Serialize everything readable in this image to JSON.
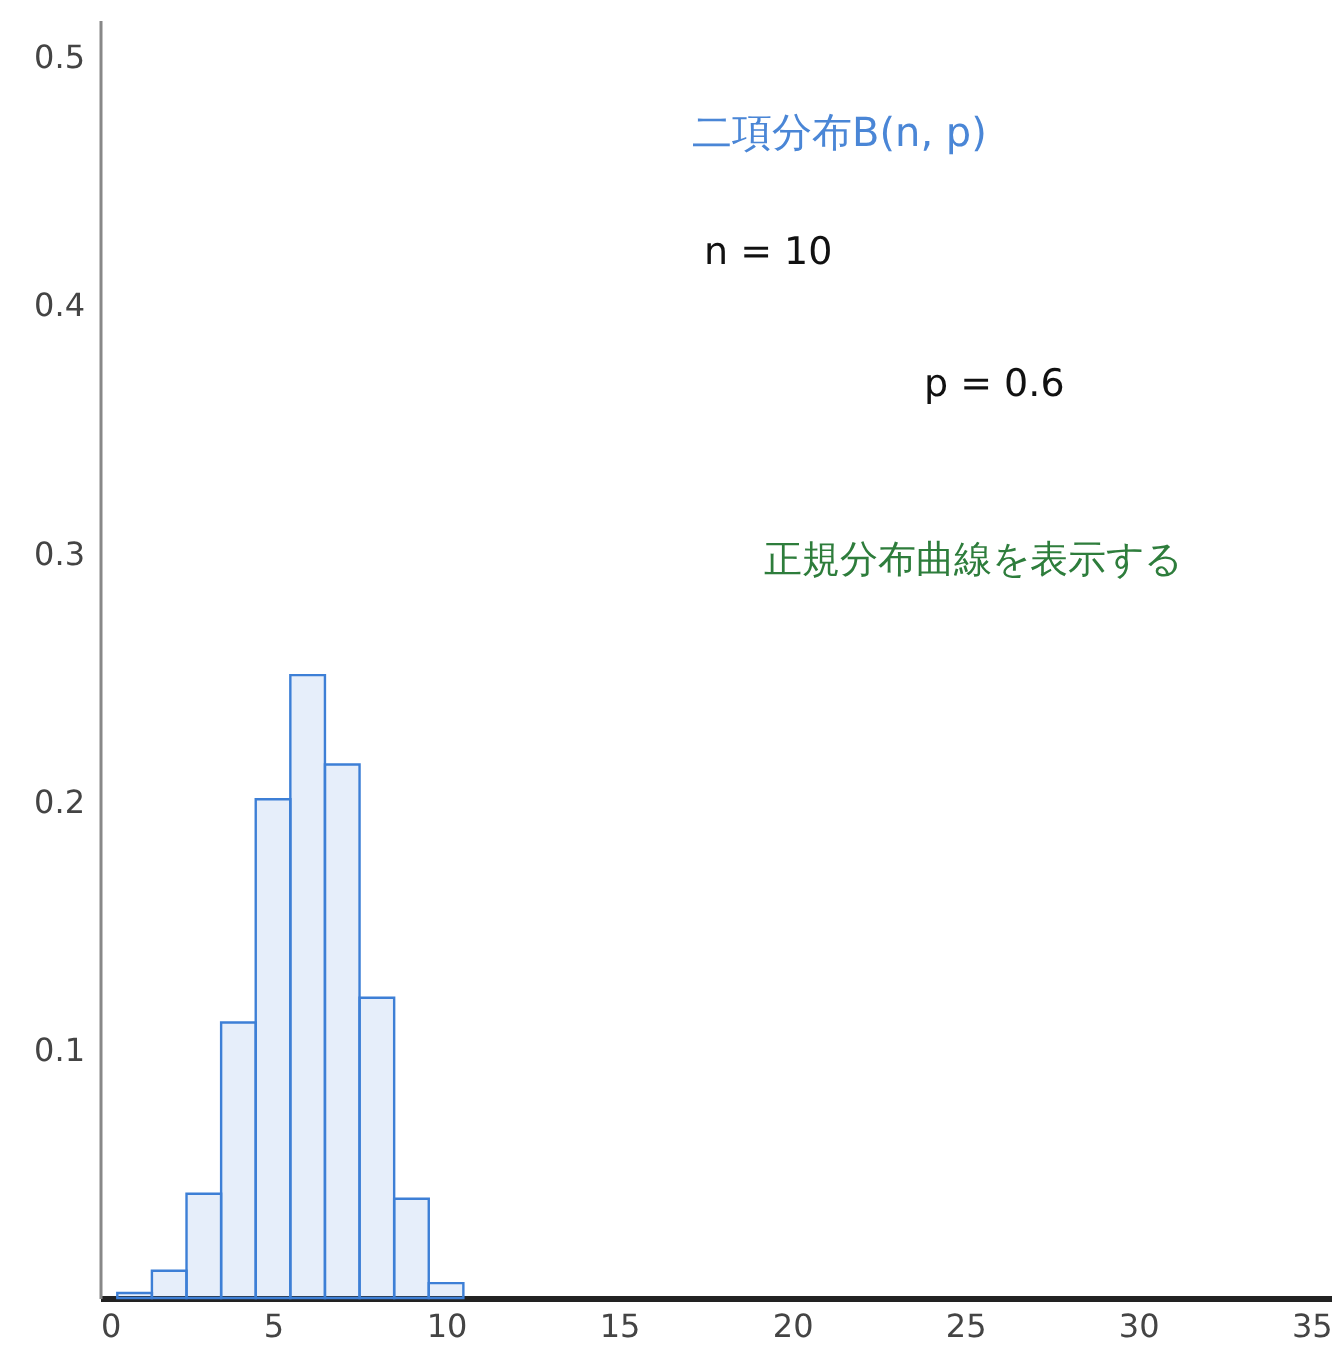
{
  "chart_data": {
    "type": "histogram",
    "title": "二項分布B(n, p)",
    "bins": [
      0.5,
      1.5,
      2.5,
      3.5,
      4.5,
      5.5,
      6.5,
      7.5,
      8.5,
      9.5,
      10.5
    ],
    "values": [
      0.002,
      0.011,
      0.042,
      0.111,
      0.201,
      0.251,
      0.215,
      0.121,
      0.04,
      0.006
    ],
    "color": "#3d7fd6",
    "xlim": [
      0,
      35.6
    ],
    "xticks": [
      0,
      5,
      10,
      15,
      20,
      25,
      30,
      35
    ],
    "ylim": [
      0,
      0.515
    ],
    "yticks": [
      0.1,
      0.2,
      0.3,
      0.4,
      0.5
    ],
    "annotations": [
      "n = 10",
      "p = 0.6",
      "正規分布曲線を表示する"
    ],
    "grid": false
  }
}
